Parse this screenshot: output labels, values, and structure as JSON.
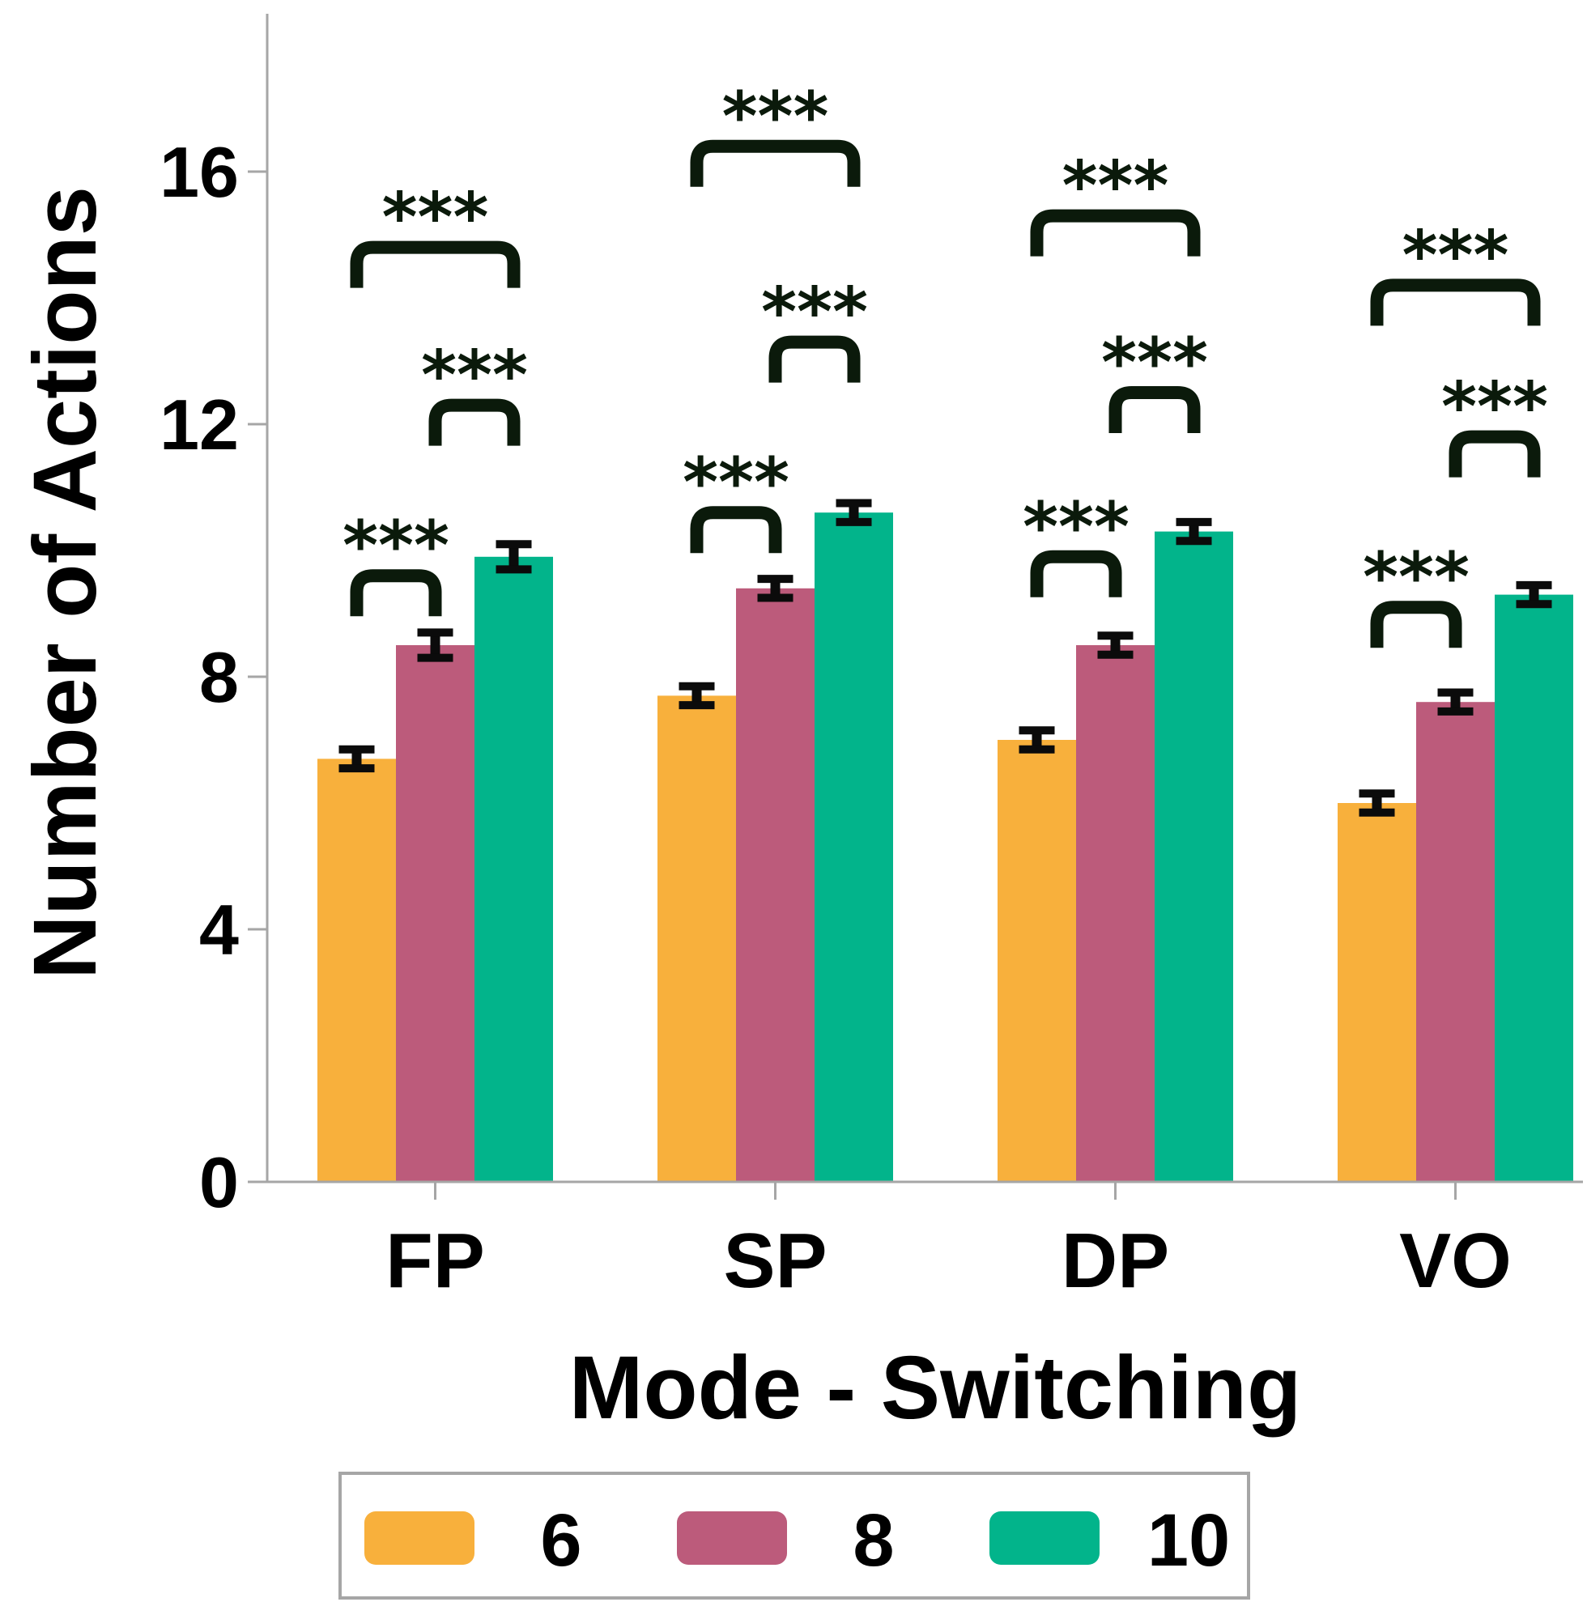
{
  "chart_data": {
    "type": "bar",
    "title": "",
    "xlabel": "Mode - Switching",
    "ylabel": "Number of Actions",
    "ylim": [
      0,
      18.5
    ],
    "yticks": [
      0,
      4,
      8,
      12,
      16
    ],
    "categories": [
      "FP",
      "SP",
      "DP",
      "VO"
    ],
    "series": [
      {
        "name": "6",
        "color": "#F8B03C",
        "values": [
          6.7,
          7.7,
          7.0,
          6.0
        ],
        "errors": [
          0.15,
          0.15,
          0.15,
          0.15
        ]
      },
      {
        "name": "8",
        "color": "#BC5B7B",
        "values": [
          8.5,
          9.4,
          8.5,
          7.6
        ],
        "errors": [
          0.2,
          0.15,
          0.15,
          0.15
        ]
      },
      {
        "name": "10",
        "color": "#02B48B",
        "values": [
          9.9,
          10.6,
          10.3,
          9.3
        ],
        "errors": [
          0.2,
          0.15,
          0.15,
          0.15
        ]
      }
    ],
    "annotations": [
      {
        "category": "FP",
        "from": 0,
        "to": 1,
        "label": "***",
        "y": 9.6
      },
      {
        "category": "FP",
        "from": 1,
        "to": 2,
        "label": "***",
        "y": 12.3
      },
      {
        "category": "FP",
        "from": 0,
        "to": 2,
        "label": "***",
        "y": 14.8
      },
      {
        "category": "SP",
        "from": 0,
        "to": 1,
        "label": "***",
        "y": 10.6
      },
      {
        "category": "SP",
        "from": 1,
        "to": 2,
        "label": "***",
        "y": 13.3
      },
      {
        "category": "SP",
        "from": 0,
        "to": 2,
        "label": "***",
        "y": 16.4
      },
      {
        "category": "DP",
        "from": 0,
        "to": 1,
        "label": "***",
        "y": 9.9
      },
      {
        "category": "DP",
        "from": 1,
        "to": 2,
        "label": "***",
        "y": 12.5
      },
      {
        "category": "DP",
        "from": 0,
        "to": 2,
        "label": "***",
        "y": 15.3
      },
      {
        "category": "VO",
        "from": 0,
        "to": 1,
        "label": "***",
        "y": 9.1
      },
      {
        "category": "VO",
        "from": 1,
        "to": 2,
        "label": "***",
        "y": 11.8
      },
      {
        "category": "VO",
        "from": 0,
        "to": 2,
        "label": "***",
        "y": 14.2
      }
    ],
    "legend": {
      "position": "bottom",
      "entries": [
        "6",
        "8",
        "10"
      ]
    }
  }
}
